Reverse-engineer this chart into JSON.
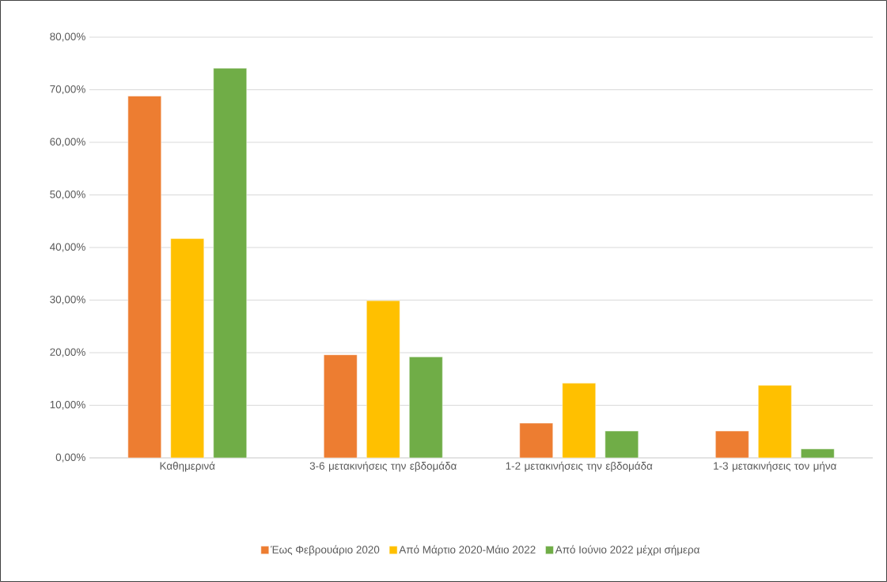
{
  "chart_data": {
    "type": "bar",
    "categories": [
      "Καθημερινά",
      "3-6 μετακινήσεις την εβδομάδα",
      "1-2 μετακινήσεις την εβδομάδα",
      "1-3 μετακινήσεις τον μήνα"
    ],
    "series": [
      {
        "name": "Έως Φεβρουάριο 2020",
        "color": "#ed7d31",
        "values": [
          68.8,
          19.6,
          6.6,
          5.1
        ]
      },
      {
        "name": "Από Μάρτιο 2020-Μάιο 2022",
        "color": "#ffc000",
        "values": [
          41.7,
          29.9,
          14.2,
          13.8
        ]
      },
      {
        "name": "Από Ιούνιο 2022 μέχρι σήμερα",
        "color": "#70ad47",
        "values": [
          74.1,
          19.2,
          5.1,
          1.7
        ]
      }
    ],
    "ylim": [
      0,
      80
    ],
    "yticks": [
      {
        "value": 0,
        "label": "0,00%"
      },
      {
        "value": 10,
        "label": "10,00%"
      },
      {
        "value": 20,
        "label": "20,00%"
      },
      {
        "value": 30,
        "label": "30,00%"
      },
      {
        "value": 40,
        "label": "40,00%"
      },
      {
        "value": 50,
        "label": "50,00%"
      },
      {
        "value": 60,
        "label": "60,00%"
      },
      {
        "value": 70,
        "label": "70,00%"
      },
      {
        "value": 80,
        "label": "80,00%"
      }
    ],
    "grid": "y",
    "legend": "bottom"
  }
}
